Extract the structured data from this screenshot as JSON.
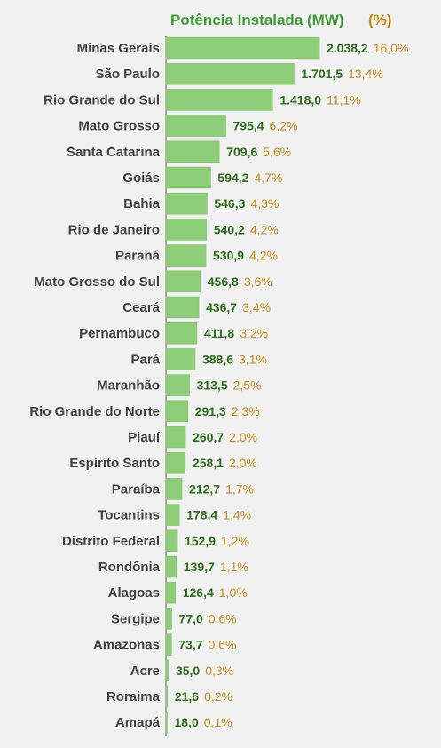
{
  "header": {
    "title": "Potência Instalada (MW)",
    "pct_label": "(%)"
  },
  "colors": {
    "bar": "#8fce79",
    "bar_edge": "#7dbf68",
    "value": "#2f6b1f",
    "pct": "#c08a1a",
    "title": "#3f9a3a",
    "axis": "#555555",
    "background": "#f1f1f1"
  },
  "chart_data": {
    "type": "bar",
    "orientation": "horizontal",
    "title": "Potência Instalada (MW)",
    "xlim": [
      0,
      2038.2
    ],
    "categories": [
      "Minas Gerais",
      "São Paulo",
      "Rio Grande do Sul",
      "Mato Grosso",
      "Santa Catarina",
      "Goiás",
      "Bahia",
      "Rio de Janeiro",
      "Paraná",
      "Mato Grosso do Sul",
      "Ceará",
      "Pernambuco",
      "Pará",
      "Maranhão",
      "Rio Grande do Norte",
      "Piauí",
      "Espírito Santo",
      "Paraíba",
      "Tocantins",
      "Distrito Federal",
      "Rondônia",
      "Alagoas",
      "Sergipe",
      "Amazonas",
      "Acre",
      "Roraima",
      "Amapá"
    ],
    "values": [
      2038.2,
      1701.5,
      1418.0,
      795.4,
      709.6,
      594.2,
      546.3,
      540.2,
      530.9,
      456.8,
      436.7,
      411.8,
      388.6,
      313.5,
      291.3,
      260.7,
      258.1,
      212.7,
      178.4,
      152.9,
      139.7,
      126.4,
      77.0,
      73.7,
      35.0,
      21.6,
      18.0
    ],
    "value_labels": [
      "2.038,2",
      "1.701,5",
      "1.418,0",
      "795,4",
      "709,6",
      "594,2",
      "546,3",
      "540,2",
      "530,9",
      "456,8",
      "436,7",
      "411,8",
      "388,6",
      "313,5",
      "291,3",
      "260,7",
      "258,1",
      "212,7",
      "178,4",
      "152,9",
      "139,7",
      "126,4",
      "77,0",
      "73,7",
      "35,0",
      "21,6",
      "18,0"
    ],
    "pct_labels": [
      "16,0%",
      "13,4%",
      "11,1%",
      "6,2%",
      "5,6%",
      "4,7%",
      "4,3%",
      "4,2%",
      "4,2%",
      "3,6%",
      "3,4%",
      "3,2%",
      "3,1%",
      "2,5%",
      "2,3%",
      "2,0%",
      "2,0%",
      "1,7%",
      "1,4%",
      "1,2%",
      "1,1%",
      "1,0%",
      "0,6%",
      "0,6%",
      "0,3%",
      "0,2%",
      "0,1%"
    ]
  }
}
